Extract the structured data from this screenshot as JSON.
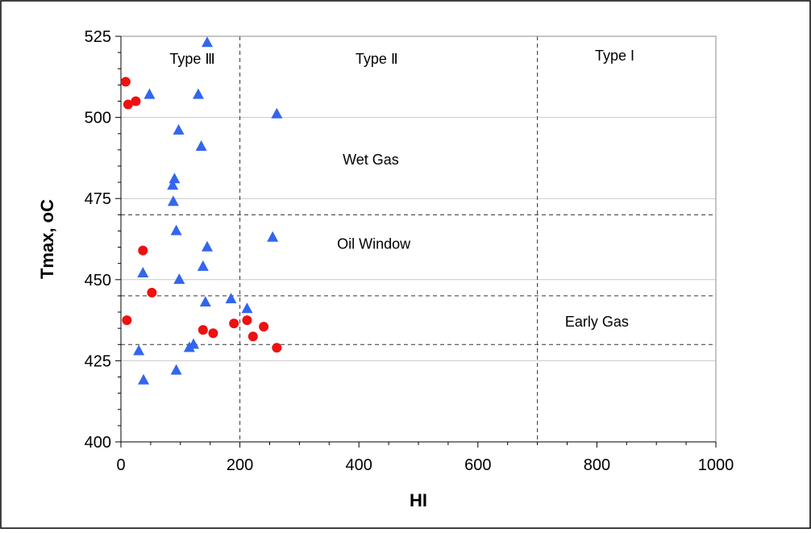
{
  "chart_data": {
    "type": "scatter",
    "xlabel": "HI",
    "ylabel": "Tmax, oC",
    "xlim": [
      0,
      1000
    ],
    "ylim": [
      400,
      525
    ],
    "xticks": [
      0,
      200,
      400,
      600,
      800,
      1000
    ],
    "yticks": [
      400,
      425,
      450,
      475,
      500,
      525
    ],
    "grid_y": true,
    "vertical_lines": [
      200,
      700
    ],
    "horizontal_lines": [
      470,
      445,
      430
    ],
    "annotations": [
      {
        "text": "Type Ⅲ",
        "x": 120,
        "y": 518
      },
      {
        "text": "Type Ⅱ",
        "x": 430,
        "y": 518
      },
      {
        "text": "Type I",
        "x": 830,
        "y": 519
      },
      {
        "text": "Wet Gas",
        "x": 420,
        "y": 487
      },
      {
        "text": "Oil Window",
        "x": 425,
        "y": 461
      },
      {
        "text": "Early Gas",
        "x": 800,
        "y": 437
      }
    ],
    "series": [
      {
        "marker": "circle",
        "color": "#ee1111",
        "points": [
          [
            8,
            511
          ],
          [
            12,
            504
          ],
          [
            25,
            505
          ],
          [
            37,
            459
          ],
          [
            52,
            446
          ],
          [
            10,
            437.5
          ],
          [
            138,
            434.5
          ],
          [
            155,
            433.5
          ],
          [
            190,
            436.5
          ],
          [
            212,
            437.5
          ],
          [
            222,
            432.5
          ],
          [
            240,
            435.5
          ],
          [
            262,
            429
          ]
        ]
      },
      {
        "marker": "triangle",
        "color": "#3366ee",
        "points": [
          [
            145,
            523
          ],
          [
            48,
            507
          ],
          [
            130,
            507
          ],
          [
            262,
            501
          ],
          [
            97,
            496
          ],
          [
            135,
            491
          ],
          [
            90,
            481
          ],
          [
            87,
            479
          ],
          [
            88,
            474
          ],
          [
            93,
            465
          ],
          [
            145,
            460
          ],
          [
            255,
            463
          ],
          [
            37,
            452
          ],
          [
            138,
            454
          ],
          [
            98,
            450
          ],
          [
            142,
            443
          ],
          [
            185,
            444
          ],
          [
            212,
            441
          ],
          [
            30,
            428
          ],
          [
            38,
            419
          ],
          [
            115,
            429
          ],
          [
            122,
            430
          ],
          [
            93,
            422
          ]
        ]
      }
    ]
  }
}
